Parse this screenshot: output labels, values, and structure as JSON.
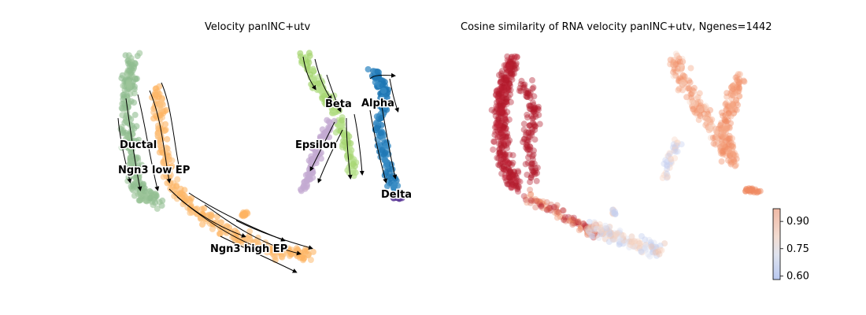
{
  "figure": {
    "left_title": "Velocity panINC+utv",
    "right_title": "Cosine similarity of RNA velocity panINC+utv, Ngenes=1442"
  },
  "chart_data": [
    {
      "type": "scatter",
      "subtype": "velocity-stream-embedding",
      "title": "Velocity panINC+utv",
      "xlabel": "",
      "ylabel": "",
      "grid": false,
      "axes_visible": false,
      "clusters": [
        {
          "name": "Ductal",
          "color": "#8fbc8f"
        },
        {
          "name": "Ngn3 low EP",
          "color": "#8fbc8f"
        },
        {
          "name": "Ngn3 high EP",
          "color": "#fdb462"
        },
        {
          "name": "Beta",
          "color": "#a6d672"
        },
        {
          "name": "Alpha",
          "color": "#1f77b4"
        },
        {
          "name": "Epsilon",
          "color": "#c3a9d1"
        },
        {
          "name": "Delta",
          "color": "#5e3c99"
        }
      ],
      "labels": [
        "Ductal",
        "Ngn3 low EP",
        "Ngn3 high EP",
        "Beta",
        "Alpha",
        "Epsilon",
        "Delta"
      ]
    },
    {
      "type": "scatter",
      "subtype": "embedding-colored-by-value",
      "title": "Cosine similarity of RNA velocity panINC+utv, Ngenes=1442",
      "xlabel": "",
      "ylabel": "",
      "grid": false,
      "axes_visible": false,
      "colormap": "coolwarm",
      "colorbar": {
        "range": [
          0.58,
          0.97
        ],
        "ticks": [
          0.6,
          0.75,
          0.9
        ],
        "tick_labels": [
          "0.60",
          "0.75",
          "0.90"
        ],
        "placement": "bottom-right"
      }
    }
  ],
  "colors": {
    "green": "#8fbc8f",
    "orange": "#fdb462",
    "lightgreen": "#a6d672",
    "blue": "#1f77b4",
    "lilac": "#c3a9d1",
    "purple": "#5e3c99",
    "red": "#b2182b",
    "salmon": "#ef8a62",
    "pale": "#f7d4c3",
    "paleblue": "#c6d0ef"
  }
}
